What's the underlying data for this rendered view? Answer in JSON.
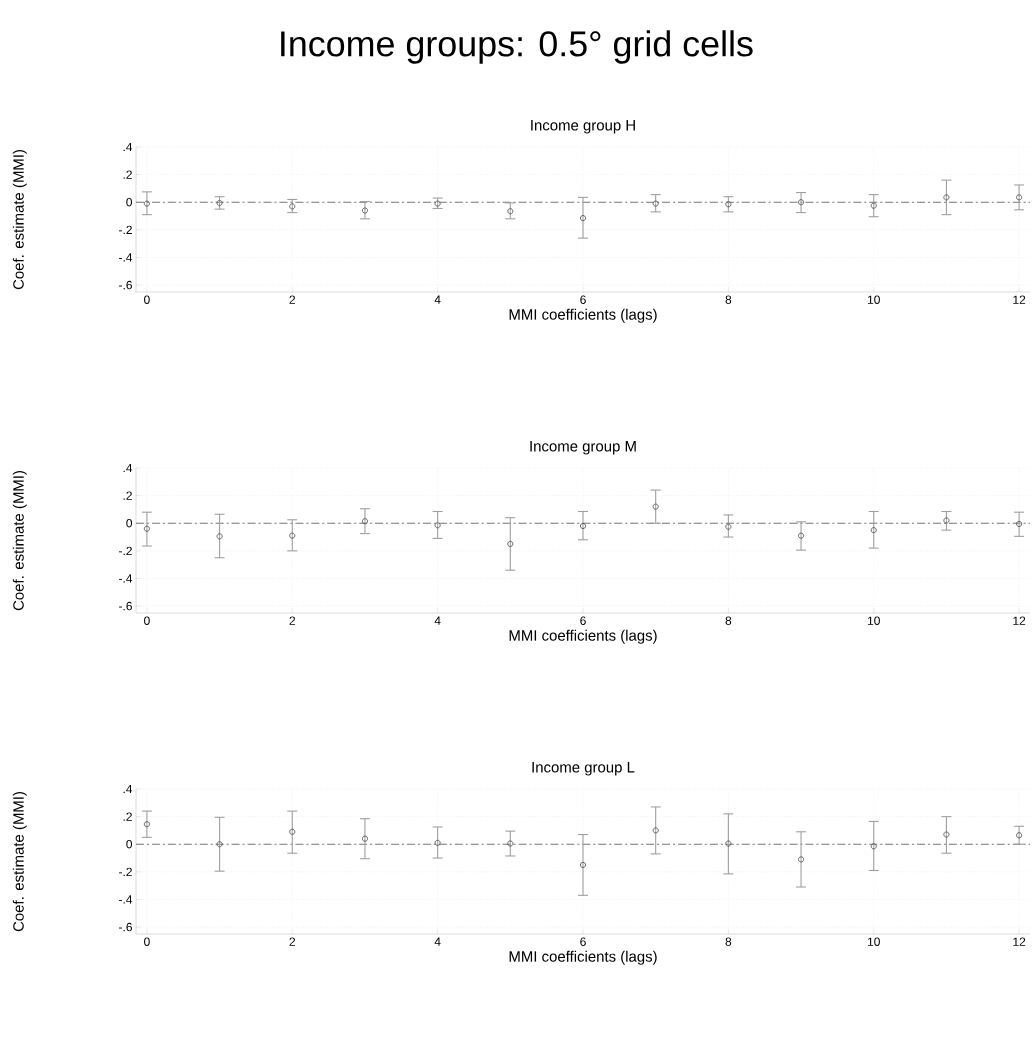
{
  "chart_data": [
    {
      "type": "scatter",
      "title": "Income groups: 0.5° grid cells",
      "subtitle": "Income group H",
      "xlabel": "MMI coefficients (lags)",
      "ylabel": "Coef. estimate (MMI)",
      "x": [
        0,
        1,
        2,
        3,
        4,
        5,
        6,
        7,
        8,
        9,
        10,
        11,
        12
      ],
      "marker": "circle",
      "grid": true,
      "series": [
        {
          "color": "#555555",
          "values": [
            -0.01,
            -0.005,
            -0.03,
            -0.06,
            -0.01,
            -0.065,
            -0.115,
            -0.01,
            -0.015,
            0,
            -0.025,
            0.035,
            0.035
          ],
          "errors": [
            [
              -0.09,
              0.075
            ],
            [
              -0.05,
              0.04
            ],
            [
              -0.075,
              0.02
            ],
            [
              -0.12,
              0.005
            ],
            [
              -0.045,
              0.03
            ],
            [
              -0.12,
              -0.005
            ],
            [
              -0.26,
              0.035
            ],
            [
              -0.07,
              0.055
            ],
            [
              -0.07,
              0.04
            ],
            [
              -0.075,
              0.07
            ],
            [
              -0.105,
              0.055
            ],
            [
              -0.09,
              0.16
            ],
            [
              -0.055,
              0.125
            ]
          ]
        }
      ],
      "xlim": [
        -0.15,
        12.15
      ],
      "ylim": [
        -0.65,
        0.4
      ],
      "xticks": [
        0,
        2,
        4,
        6,
        8,
        10,
        12
      ],
      "yticks": [
        {
          "value": 0.4,
          "label": ".4"
        },
        {
          "value": 0.2,
          "label": ".2"
        },
        0,
        {
          "value": -0.2,
          "label": "-.2"
        },
        {
          "value": -0.4,
          "label": "-.4"
        },
        {
          "value": -0.6,
          "label": "-.6"
        }
      ],
      "ref_lines": [
        {
          "axis": "y",
          "value": 0,
          "color": "#777777",
          "line_style": "dashed"
        }
      ]
    },
    {
      "type": "scatter",
      "subtitle": "Income group M",
      "xlabel": "MMI coefficients (lags)",
      "ylabel": "Coef. estimate (MMI)",
      "x": [
        0,
        1,
        2,
        3,
        4,
        5,
        6,
        7,
        8,
        9,
        10,
        11,
        12
      ],
      "marker": "circle",
      "grid": true,
      "series": [
        {
          "color": "#555555",
          "values": [
            -0.04,
            -0.095,
            -0.09,
            0.015,
            -0.015,
            -0.15,
            -0.02,
            0.12,
            -0.025,
            -0.09,
            -0.05,
            0.02,
            -0.005
          ],
          "errors": [
            [
              -0.165,
              0.08
            ],
            [
              -0.25,
              0.065
            ],
            [
              -0.2,
              0.025
            ],
            [
              -0.075,
              0.105
            ],
            [
              -0.11,
              0.085
            ],
            [
              -0.34,
              0.04
            ],
            [
              -0.12,
              0.085
            ],
            [
              0,
              0.24
            ],
            [
              -0.1,
              0.06
            ],
            [
              -0.195,
              0.01
            ],
            [
              -0.18,
              0.085
            ],
            [
              -0.05,
              0.085
            ],
            [
              -0.095,
              0.08
            ]
          ]
        }
      ],
      "xlim": [
        -0.15,
        12.15
      ],
      "ylim": [
        -0.65,
        0.4
      ],
      "xticks": [
        0,
        2,
        4,
        6,
        8,
        10,
        12
      ],
      "yticks": [
        {
          "value": 0.4,
          "label": ".4"
        },
        {
          "value": 0.2,
          "label": ".2"
        },
        0,
        {
          "value": -0.2,
          "label": "-.2"
        },
        {
          "value": -0.4,
          "label": "-.4"
        },
        {
          "value": -0.6,
          "label": "-.6"
        }
      ],
      "ref_lines": [
        {
          "axis": "y",
          "value": 0,
          "color": "#777777",
          "line_style": "dashed"
        }
      ]
    },
    {
      "type": "scatter",
      "subtitle": "Income group L",
      "xlabel": "MMI coefficients (lags)",
      "ylabel": "Coef. estimate (MMI)",
      "x": [
        0,
        1,
        2,
        3,
        4,
        5,
        6,
        7,
        8,
        9,
        10,
        11,
        12
      ],
      "marker": "circle",
      "grid": true,
      "series": [
        {
          "color": "#555555",
          "values": [
            0.145,
            0,
            0.09,
            0.04,
            0.01,
            0.005,
            -0.15,
            0.1,
            0.005,
            -0.11,
            -0.015,
            0.07,
            0.065
          ],
          "errors": [
            [
              0.05,
              0.24
            ],
            [
              -0.195,
              0.195
            ],
            [
              -0.065,
              0.24
            ],
            [
              -0.105,
              0.185
            ],
            [
              -0.1,
              0.125
            ],
            [
              -0.085,
              0.095
            ],
            [
              -0.37,
              0.07
            ],
            [
              -0.07,
              0.27
            ],
            [
              -0.215,
              0.22
            ],
            [
              -0.31,
              0.09
            ],
            [
              -0.19,
              0.165
            ],
            [
              -0.065,
              0.2
            ],
            [
              0,
              0.13
            ]
          ]
        }
      ],
      "xlim": [
        -0.15,
        12.15
      ],
      "ylim": [
        -0.65,
        0.4
      ],
      "xticks": [
        0,
        2,
        4,
        6,
        8,
        10,
        12
      ],
      "yticks": [
        {
          "value": 0.4,
          "label": ".4"
        },
        {
          "value": 0.2,
          "label": ".2"
        },
        0,
        {
          "value": -0.2,
          "label": "-.2"
        },
        {
          "value": -0.4,
          "label": "-.4"
        },
        {
          "value": -0.6,
          "label": "-.6"
        }
      ],
      "ref_lines": [
        {
          "axis": "y",
          "value": 0,
          "color": "#777777",
          "line_style": "dashed"
        }
      ]
    }
  ]
}
